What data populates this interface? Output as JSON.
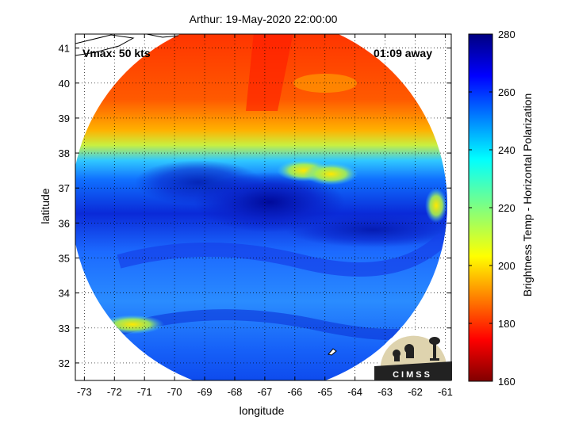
{
  "chart_data": {
    "type": "heatmap",
    "title": "Arthur: 19-May-2020 22:00:00",
    "xlabel": "longitude",
    "ylabel": "latitude",
    "xlim": [
      -73.3,
      -60.8
    ],
    "ylim": [
      31.5,
      41.4
    ],
    "xticks": [
      -73,
      -72,
      -71,
      -70,
      -69,
      -68,
      -67,
      -66,
      -65,
      -64,
      -63,
      -62,
      -61
    ],
    "yticks": [
      32,
      33,
      34,
      35,
      36,
      37,
      38,
      39,
      40,
      41
    ],
    "grid": true,
    "colorbar": {
      "label": "Brightness Temp - Horizontal Polarization",
      "range": [
        160,
        280
      ],
      "ticks": [
        160,
        180,
        200,
        220,
        240,
        260,
        280
      ],
      "colormap": "jet"
    },
    "annotations": {
      "vmax": "Vmax: 50 kts",
      "time_away": "01:09 away"
    },
    "swath": {
      "center_lon": -67.0,
      "center_lat": 36.5,
      "description": "circular microwave overpass swath"
    },
    "temperature_regions": [
      {
        "lat_range": [
          39.5,
          41.4
        ],
        "temp": 182
      },
      {
        "lat_range": [
          38.5,
          39.5
        ],
        "temp": 195
      },
      {
        "lat_range": [
          37.8,
          38.5
        ],
        "temp": 228
      },
      {
        "lat_range": [
          36.0,
          37.8
        ],
        "temp": 262
      },
      {
        "lat_range": [
          31.5,
          36.0
        ],
        "temp": 250
      }
    ],
    "warm_spots": [
      {
        "lon": -65.7,
        "lat": 37.5,
        "temp": 205
      },
      {
        "lon": -64.8,
        "lat": 37.4,
        "temp": 210
      },
      {
        "lon": -61.3,
        "lat": 36.5,
        "temp": 215
      },
      {
        "lon": -71.4,
        "lat": 33.1,
        "temp": 212
      }
    ],
    "colors": {
      "axis": "#000000",
      "grid": "#000000",
      "background": "#ffffff"
    }
  },
  "logo": {
    "text": "CIMSS"
  }
}
